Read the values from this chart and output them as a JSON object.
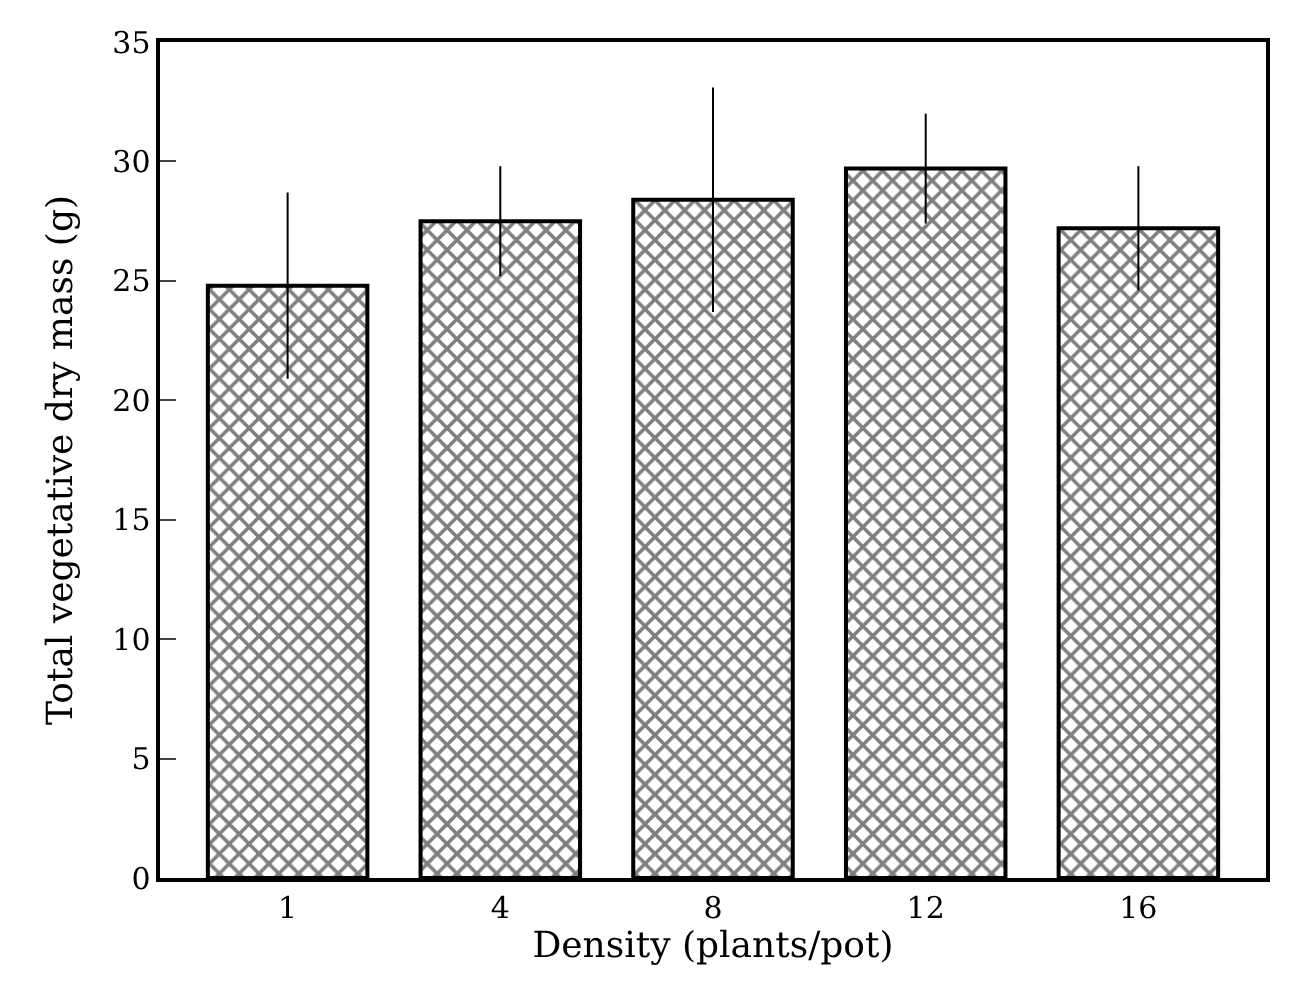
{
  "chart_data": {
    "type": "bar",
    "xlabel": "Density (plants/pot)",
    "ylabel": "Total vegetative dry mass (g)",
    "categories": [
      "1",
      "4",
      "8",
      "12",
      "16"
    ],
    "values": [
      24.8,
      27.5,
      28.4,
      29.7,
      27.2
    ],
    "errors": [
      3.9,
      2.3,
      4.7,
      2.3,
      2.6
    ],
    "color": "#000000",
    "ylim": [
      0,
      35
    ],
    "yticks": [
      0,
      5,
      10,
      15,
      20,
      25,
      30,
      35
    ],
    "legend": false
  }
}
